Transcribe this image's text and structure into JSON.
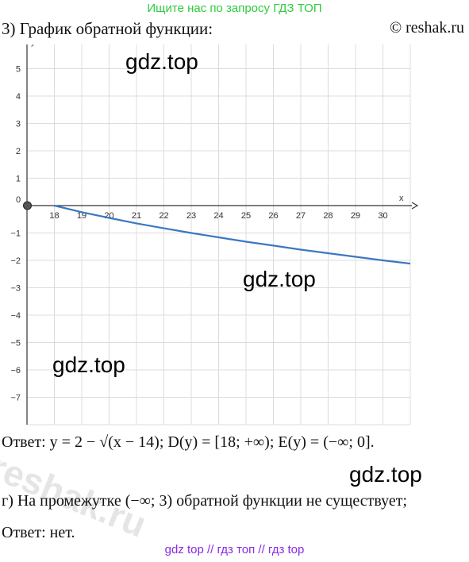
{
  "header": {
    "banner": "Ищите нас по запросу ГДЗ ТОП",
    "heading": "3) График обратной функции:",
    "copyright": "© reshak.ru"
  },
  "watermarks": [
    "gdz.top",
    "gdz.top",
    "gdz.top",
    "gdz.top"
  ],
  "stamp": "reshak.ru",
  "chart_data": {
    "type": "line",
    "xlabel": "x",
    "ylabel": "y",
    "origin_label": "0",
    "xlim": [
      17,
      31
    ],
    "ylim": [
      -8,
      6
    ],
    "x_ticks": [
      18,
      19,
      20,
      21,
      22,
      23,
      24,
      25,
      26,
      27,
      28,
      29,
      30
    ],
    "y_ticks": [
      5,
      4,
      3,
      2,
      1,
      -1,
      -2,
      -3,
      -4,
      -5,
      -6,
      -7
    ],
    "grid": true,
    "series": [
      {
        "x": [
          18,
          19,
          20,
          21,
          22,
          23,
          24,
          25,
          26,
          27,
          28,
          29,
          30,
          31
        ],
        "y": [
          0,
          -0.24,
          -0.45,
          -0.65,
          -0.83,
          -1.0,
          -1.16,
          -1.32,
          -1.46,
          -1.61,
          -1.74,
          -1.87,
          -2.0,
          -2.12
        ],
        "color": "#3b78c2"
      }
    ],
    "marked_point": {
      "x": 18,
      "y": 0,
      "color": "#555555"
    }
  },
  "answer": {
    "text": "Ответ: y = 2 − √(x − 14); D(y) = [18; +∞); E(y) = (−∞; 0]."
  },
  "part_g": {
    "text": "г) На промежутке (−∞; 3) обратной функции не существует;",
    "answer": "Ответ: нет."
  },
  "footer": "gdz top // гдз топ // гдз top"
}
